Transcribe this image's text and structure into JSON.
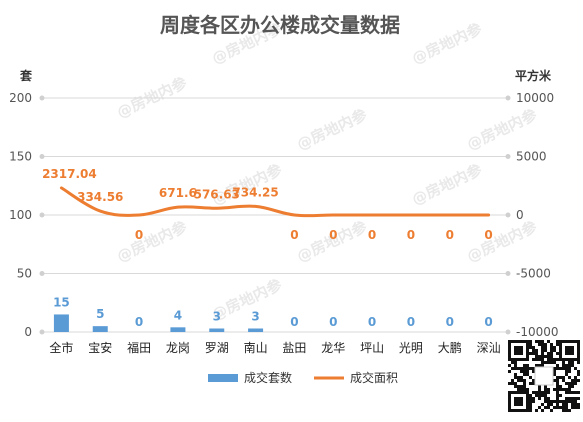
{
  "chart_data": {
    "type": "bar",
    "title": "周度各区办公楼成交量数据",
    "categories": [
      "全市",
      "宝安",
      "福田",
      "龙岗",
      "罗湖",
      "南山",
      "盐田",
      "龙华",
      "坪山",
      "光明",
      "大鹏",
      "深汕"
    ],
    "left_axis": {
      "unit": "套",
      "range": [
        0,
        200
      ],
      "ticks": [
        0,
        50,
        100,
        150,
        200
      ]
    },
    "right_axis": {
      "unit": "平方米",
      "range": [
        -10000,
        10000
      ],
      "ticks": [
        -10000,
        -5000,
        0,
        5000,
        10000
      ]
    },
    "series": [
      {
        "name": "成交套数",
        "type": "bar",
        "axis": "left",
        "color": "#5b9bd5",
        "values": [
          15,
          5,
          0,
          4,
          3,
          3,
          0,
          0,
          0,
          0,
          0,
          0
        ],
        "labels": [
          "15",
          "5",
          "0",
          "4",
          "3",
          "3",
          "0",
          "0",
          "0",
          "0",
          "0",
          "0"
        ]
      },
      {
        "name": "成交面积",
        "type": "line",
        "axis": "right",
        "color": "#ed7d31",
        "values": [
          2317.04,
          334.56,
          0,
          671.6,
          576.63,
          734.25,
          0,
          0,
          0,
          0,
          0,
          0
        ],
        "labels": [
          "2317.04",
          "334.56",
          "0",
          "671.6",
          "576.63",
          "734.25",
          "0",
          "0",
          "0",
          "0",
          "0",
          "0"
        ]
      }
    ],
    "legend": {
      "placement": "bottom"
    },
    "grid": true
  },
  "watermark": "@房地内参"
}
